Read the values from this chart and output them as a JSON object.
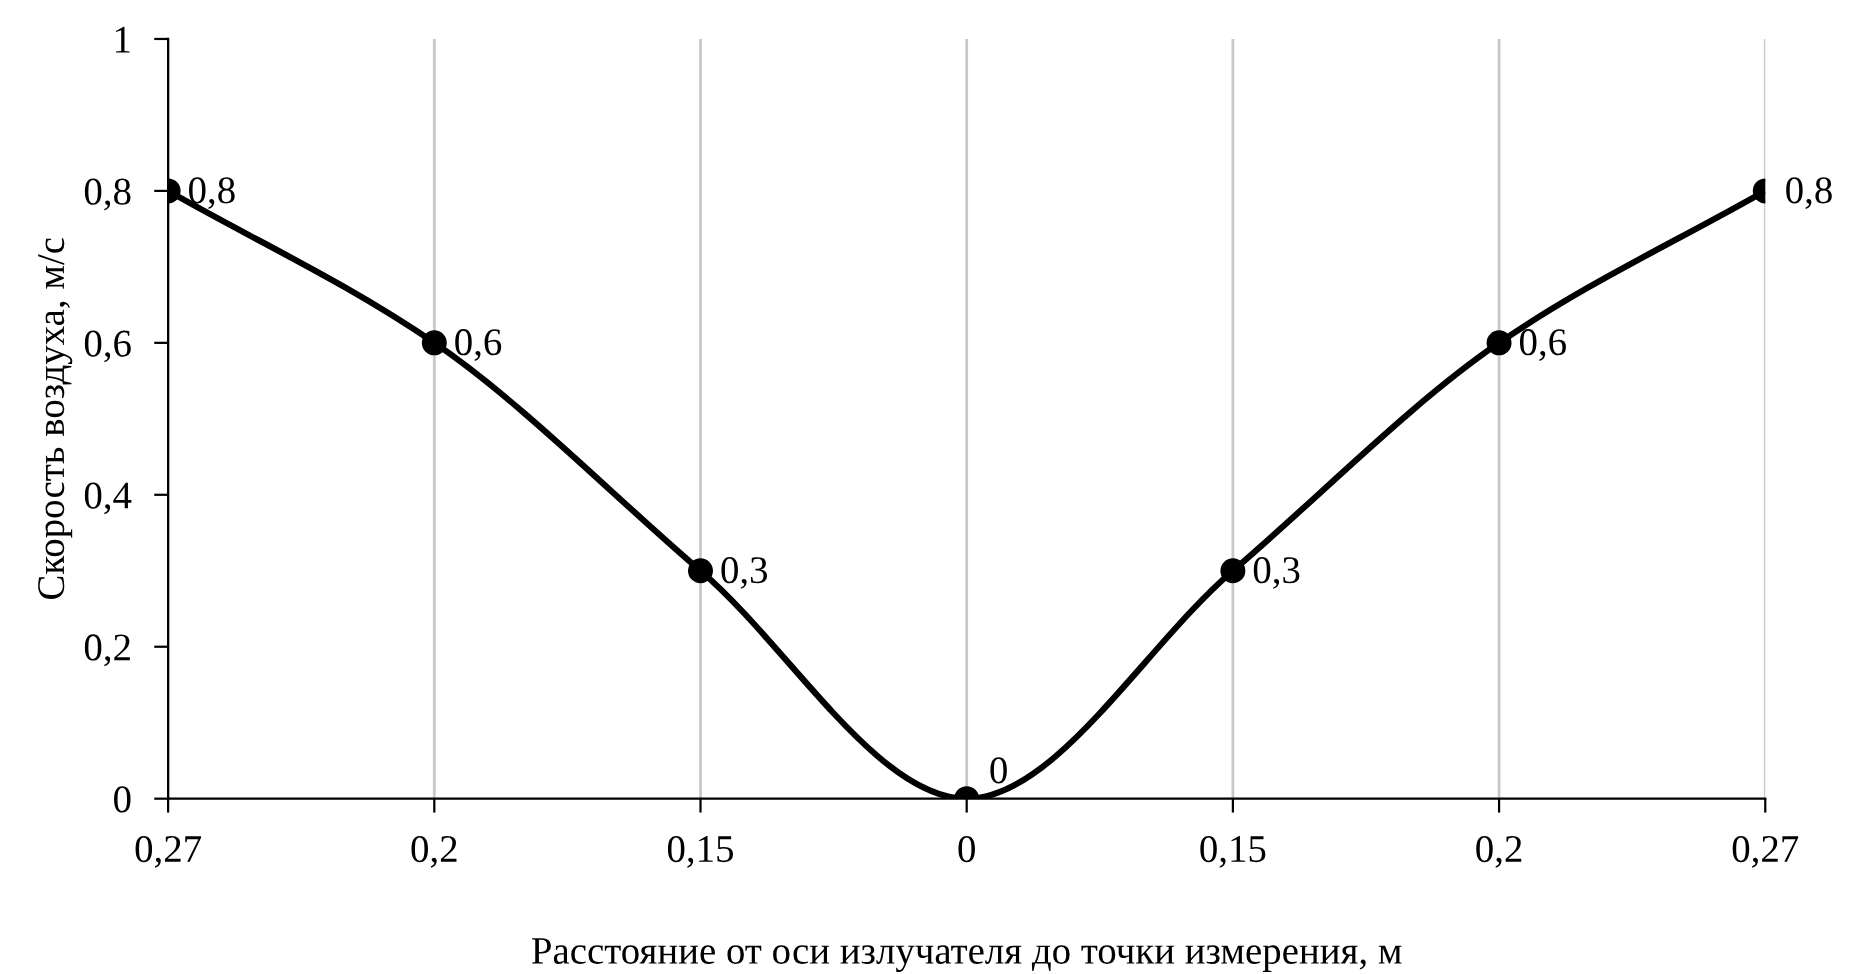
{
  "chart_data": {
    "type": "line",
    "xlabel": "Расстояние от оси излучателя до точки измерения, м",
    "ylabel": "Скорость воздуха, м/с",
    "categories": [
      "0,27",
      "0,2",
      "0,15",
      "0",
      "0,15",
      "0,2",
      "0,27"
    ],
    "series": [
      {
        "color": "#000000",
        "values": [
          0.8,
          0.6,
          0.3,
          0,
          0.3,
          0.6,
          0.8
        ],
        "value_labels": [
          "0,8",
          "0,6",
          "0,3",
          "0",
          "0,3",
          "0,6",
          "0,8"
        ]
      }
    ],
    "ylim": [
      0,
      1
    ],
    "yticks": [
      0,
      {
        "value": 0.2,
        "label": "0,2"
      },
      {
        "value": 0.4,
        "label": "0,4"
      },
      {
        "value": 0.6,
        "label": "0,6"
      },
      {
        "value": 0.8,
        "label": "0,8"
      },
      1
    ],
    "grid": "x",
    "marker": "circle",
    "line_style": "solid",
    "legend": false
  }
}
